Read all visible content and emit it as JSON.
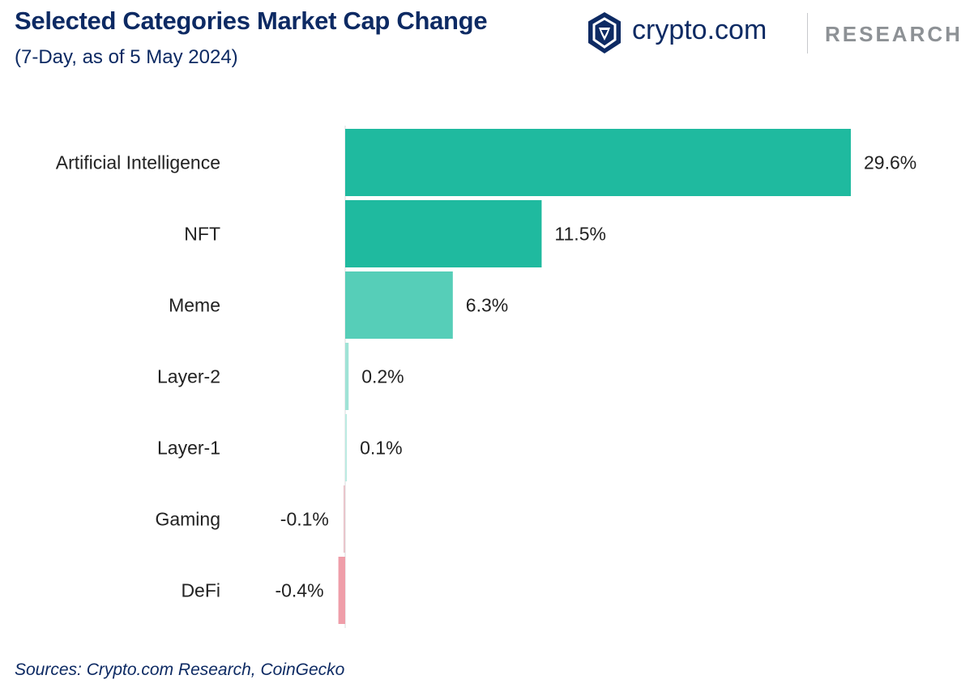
{
  "header": {
    "title": "Selected Categories Market Cap Change",
    "subtitle": "(7-Day, as of 5 May 2024)"
  },
  "brand": {
    "name": "crypto.com",
    "tag": "RESEARCH",
    "logo_icon": "crypto-com-lion-shield-icon",
    "color": "#0d2a63"
  },
  "footer": {
    "source": "Sources: Crypto.com Research, CoinGecko"
  },
  "chart_data": {
    "type": "bar",
    "orientation": "horizontal",
    "title": "Selected Categories Market Cap Change",
    "subtitle": "(7-Day, as of 5 May 2024)",
    "categories": [
      "Artificial Intelligence",
      "NFT",
      "Meme",
      "Layer-2",
      "Layer-1",
      "Gaming",
      "DeFi"
    ],
    "values": [
      29.6,
      11.5,
      6.3,
      0.2,
      0.1,
      -0.1,
      -0.4
    ],
    "value_labels": [
      "29.6%",
      "11.5%",
      "6.3%",
      "0.2%",
      "0.1%",
      "-0.1%",
      "-0.4%"
    ],
    "unit": "%",
    "bar_colors": [
      "#1fba9f",
      "#1fba9f",
      "#56ceb8",
      "#9fe3d6",
      "#bdebe2",
      "#e9c6cc",
      "#ef9ea9"
    ],
    "grid": false,
    "legend": "none"
  }
}
